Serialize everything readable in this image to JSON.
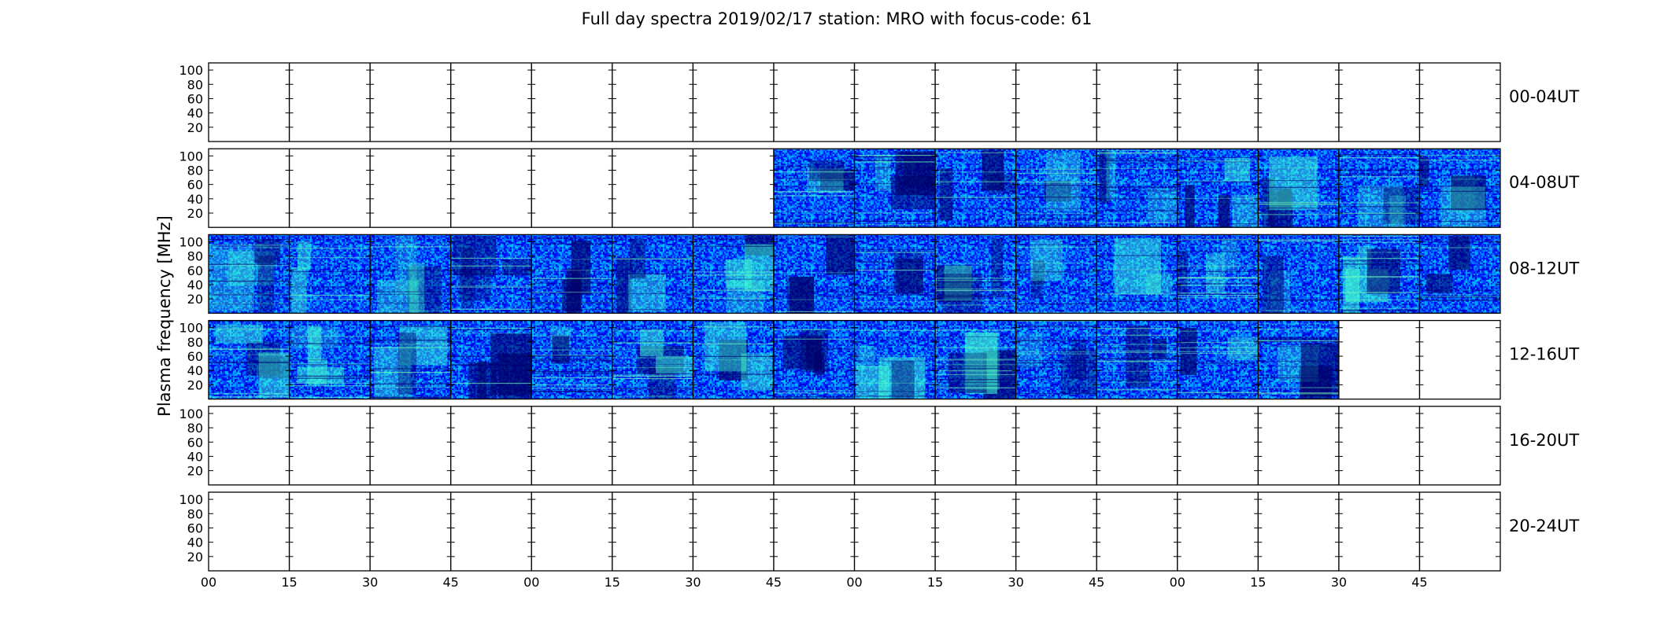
{
  "chart_data": {
    "type": "heatmap",
    "title": "Full day spectra 2019/02/17 station: MRO with focus-code: 61",
    "ylabel": "Plasma frequency [MHz]",
    "xlabel": "",
    "ylim": [
      0,
      110
    ],
    "y_ticks": [
      20,
      40,
      60,
      80,
      100
    ],
    "x_tick_labels": [
      "00",
      "15",
      "30",
      "45",
      "00",
      "15",
      "30",
      "45",
      "00",
      "15",
      "30",
      "45",
      "00",
      "15",
      "30",
      "45"
    ],
    "segments_per_row": 16,
    "segment_minutes": 15,
    "colormap": [
      "#00007f",
      "#0000ff",
      "#0080ff",
      "#00ffff",
      "#80ff80"
    ],
    "rows": [
      {
        "label": "00-04UT",
        "data_segments": []
      },
      {
        "label": "04-08UT",
        "data_segments": [
          7,
          8,
          9,
          10,
          11,
          12,
          13,
          14,
          15
        ]
      },
      {
        "label": "08-12UT",
        "data_segments": [
          0,
          1,
          2,
          3,
          4,
          5,
          6,
          7,
          8,
          9,
          10,
          11,
          12,
          13,
          14,
          15
        ]
      },
      {
        "label": "12-16UT",
        "data_segments": [
          0,
          1,
          2,
          3,
          4,
          5,
          6,
          7,
          8,
          9,
          10,
          11,
          12,
          13
        ]
      },
      {
        "label": "16-20UT",
        "data_segments": []
      },
      {
        "label": "20-24UT",
        "data_segments": []
      }
    ]
  }
}
